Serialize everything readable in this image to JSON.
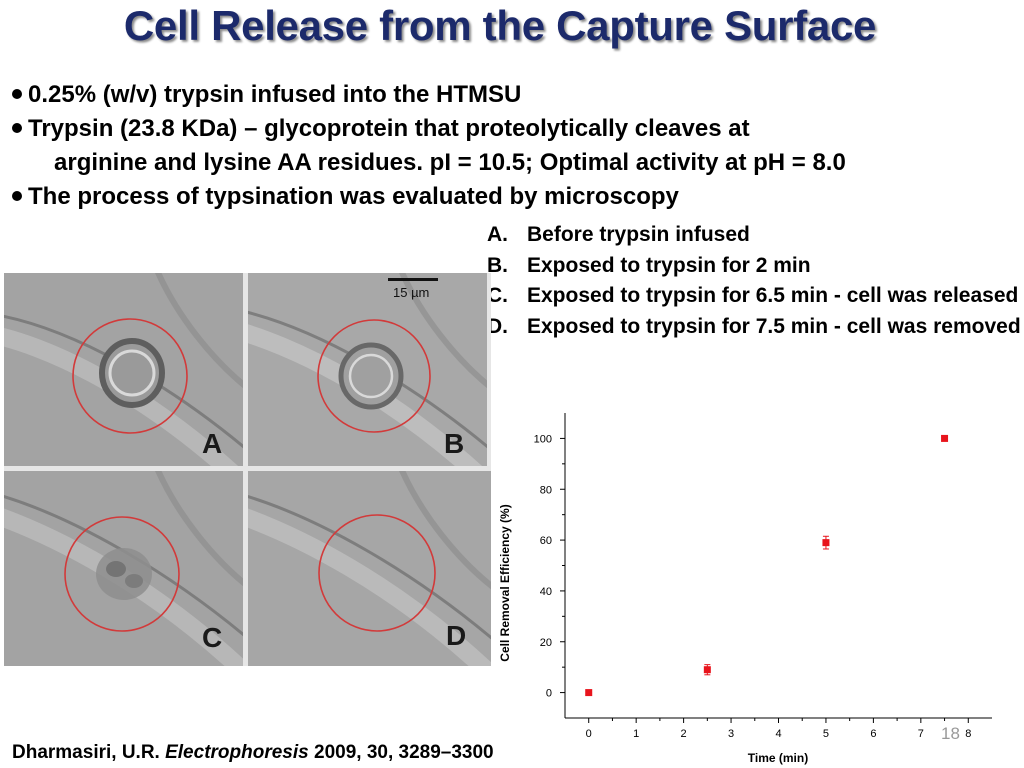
{
  "title": "Cell Release from the Capture Surface",
  "bullets": [
    "0.25% (w/v) trypsin infused into the HTMSU",
    "Trypsin (23.8 KDa) – glycoprotein that proteolytically cleaves at",
    "arginine and lysine AA residues. pI = 10.5; Optimal activity at pH = 8.0",
    "The process of typsination was evaluated by microscopy"
  ],
  "legend": [
    {
      "letter": "A.",
      "text": "Before trypsin infused"
    },
    {
      "letter": "B.",
      "text": "Exposed to trypsin for 2 min"
    },
    {
      "letter": "C.",
      "text": "Exposed to trypsin for 6.5 min - cell was released"
    },
    {
      "letter": "D.",
      "text": "Exposed to trypsin for 7.5 min - cell was removed"
    }
  ],
  "panels": {
    "labels": [
      "A",
      "B",
      "C",
      "D"
    ],
    "scale_bar_label": "15 µm",
    "circle_color": "#d23a3a"
  },
  "chart_data": {
    "type": "scatter",
    "xlabel": "Time (min)",
    "ylabel": "Cell Removal Efficiency (%)",
    "xlim": [
      -0.5,
      8.5
    ],
    "ylim": [
      -10,
      110
    ],
    "xticks": [
      0,
      1,
      2,
      3,
      4,
      5,
      6,
      7,
      8
    ],
    "yticks": [
      0,
      20,
      40,
      60,
      80,
      100
    ],
    "grid": false,
    "marker_color": "#e8141c",
    "points": [
      {
        "x": 0,
        "y": 0,
        "err": 0
      },
      {
        "x": 2.5,
        "y": 9,
        "err": 2
      },
      {
        "x": 5,
        "y": 59,
        "err": 2.5
      },
      {
        "x": 7.5,
        "y": 100,
        "err": 0
      }
    ]
  },
  "citation": {
    "author": "Dharmasiri, U.R. ",
    "journal": "Electrophoresis",
    "ref": " 2009, 30, 3289–3300"
  },
  "slide_number": "18"
}
